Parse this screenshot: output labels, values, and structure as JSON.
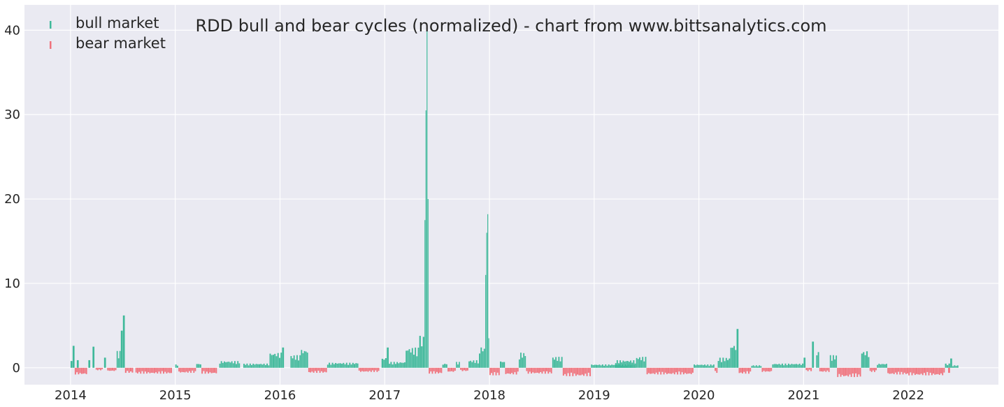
{
  "chart_data": {
    "type": "bar",
    "title": "RDD bull and bear cycles (normalized)  - chart from www.bittsanalytics.com",
    "xlabel": "",
    "ylabel": "",
    "xlim": [
      2013.56,
      2022.86
    ],
    "ylim": [
      -2,
      43
    ],
    "x_ticks": [
      "2014",
      "2015",
      "2016",
      "2017",
      "2018",
      "2019",
      "2020",
      "2021",
      "2022"
    ],
    "y_ticks": [
      "0",
      "10",
      "20",
      "30",
      "40"
    ],
    "grid": true,
    "legend_position": "top-left",
    "colors": {
      "bull": "#3fb99a",
      "bear": "#f0727c",
      "background": "#eaeaf2",
      "grid": "#ffffff"
    },
    "series": [
      {
        "name": "bull market",
        "color": "#3fb99a",
        "segments": [
          [
            2014.0,
            2014.02,
            0.8
          ],
          [
            2014.02,
            2014.04,
            2.6
          ],
          [
            2014.06,
            2014.08,
            0.9
          ],
          [
            2014.17,
            2014.19,
            0.9
          ],
          [
            2014.21,
            2014.23,
            2.5
          ],
          [
            2014.32,
            2014.34,
            1.2
          ],
          [
            2014.44,
            2014.48,
            2.0
          ],
          [
            2014.48,
            2014.5,
            4.4
          ],
          [
            2014.5,
            2014.52,
            6.2
          ],
          [
            2015.0,
            2015.03,
            0.4
          ],
          [
            2015.2,
            2015.25,
            0.5
          ],
          [
            2015.42,
            2015.62,
            0.8
          ],
          [
            2015.65,
            2015.9,
            0.5
          ],
          [
            2015.9,
            2016.02,
            1.8
          ],
          [
            2016.02,
            2016.04,
            2.4
          ],
          [
            2016.1,
            2016.2,
            1.5
          ],
          [
            2016.2,
            2016.27,
            2.2
          ],
          [
            2016.45,
            2016.75,
            0.6
          ],
          [
            2016.97,
            2017.02,
            1.2
          ],
          [
            2017.02,
            2017.04,
            2.4
          ],
          [
            2017.04,
            2017.2,
            0.7
          ],
          [
            2017.2,
            2017.33,
            2.4
          ],
          [
            2017.33,
            2017.38,
            3.8
          ],
          [
            2017.38,
            2017.39,
            17.5
          ],
          [
            2017.39,
            2017.4,
            30.5
          ],
          [
            2017.4,
            2017.41,
            40.0
          ],
          [
            2017.41,
            2017.42,
            20.0
          ],
          [
            2017.55,
            2017.6,
            0.5
          ],
          [
            2017.68,
            2017.72,
            0.7
          ],
          [
            2017.8,
            2017.9,
            0.9
          ],
          [
            2017.9,
            2017.96,
            2.5
          ],
          [
            2017.96,
            2017.97,
            11.0
          ],
          [
            2017.97,
            2017.98,
            16.0
          ],
          [
            2017.98,
            2017.99,
            18.2
          ],
          [
            2017.99,
            2018.0,
            3.5
          ],
          [
            2018.1,
            2018.15,
            0.8
          ],
          [
            2018.28,
            2018.35,
            1.8
          ],
          [
            2018.6,
            2018.7,
            1.3
          ],
          [
            2018.97,
            2019.4,
            0.4
          ],
          [
            2019.2,
            2019.4,
            0.9
          ],
          [
            2019.4,
            2019.5,
            1.3
          ],
          [
            2019.95,
            2020.15,
            0.4
          ],
          [
            2020.18,
            2020.3,
            1.2
          ],
          [
            2020.3,
            2020.36,
            2.8
          ],
          [
            2020.36,
            2020.38,
            4.6
          ],
          [
            2020.5,
            2020.6,
            0.3
          ],
          [
            2020.7,
            2021.0,
            0.5
          ],
          [
            2021.0,
            2021.02,
            1.2
          ],
          [
            2021.08,
            2021.1,
            3.1
          ],
          [
            2021.12,
            2021.15,
            2.0
          ],
          [
            2021.25,
            2021.32,
            1.5
          ],
          [
            2021.55,
            2021.63,
            2.0
          ],
          [
            2021.7,
            2021.8,
            0.5
          ],
          [
            2022.35,
            2022.4,
            0.5
          ],
          [
            2022.4,
            2022.42,
            1.1
          ],
          [
            2022.42,
            2022.48,
            0.3
          ]
        ]
      },
      {
        "name": "bear market",
        "color": "#f0727c",
        "segments": [
          [
            2014.04,
            2014.16,
            -0.8
          ],
          [
            2014.24,
            2014.31,
            -0.3
          ],
          [
            2014.35,
            2014.44,
            -0.4
          ],
          [
            2014.52,
            2014.6,
            -0.6
          ],
          [
            2014.62,
            2014.97,
            -0.7
          ],
          [
            2015.03,
            2015.2,
            -0.6
          ],
          [
            2015.25,
            2015.4,
            -0.7
          ],
          [
            2016.27,
            2016.45,
            -0.6
          ],
          [
            2016.75,
            2016.95,
            -0.5
          ],
          [
            2017.42,
            2017.55,
            -0.7
          ],
          [
            2017.6,
            2017.68,
            -0.5
          ],
          [
            2017.72,
            2017.8,
            -0.4
          ],
          [
            2018.0,
            2018.1,
            -0.9
          ],
          [
            2018.15,
            2018.28,
            -0.8
          ],
          [
            2018.35,
            2018.6,
            -0.7
          ],
          [
            2018.7,
            2018.97,
            -1.0
          ],
          [
            2019.5,
            2019.95,
            -0.8
          ],
          [
            2020.15,
            2020.18,
            -0.6
          ],
          [
            2020.38,
            2020.5,
            -0.7
          ],
          [
            2020.6,
            2020.7,
            -0.5
          ],
          [
            2021.02,
            2021.08,
            -0.4
          ],
          [
            2021.15,
            2021.25,
            -0.5
          ],
          [
            2021.32,
            2021.55,
            -1.1
          ],
          [
            2021.63,
            2021.7,
            -0.5
          ],
          [
            2021.8,
            2022.0,
            -0.8
          ],
          [
            2022.0,
            2022.35,
            -0.9
          ],
          [
            2022.38,
            2022.4,
            -0.6
          ]
        ]
      }
    ]
  }
}
